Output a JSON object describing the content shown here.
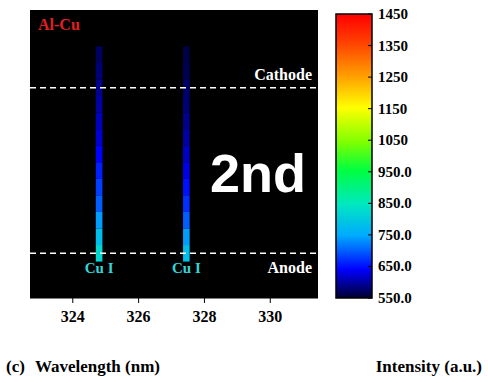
{
  "chart_data": {
    "type": "heatmap",
    "title": "Al-Cu",
    "panel_label": "(c)",
    "x_label": "Wavelength (nm)",
    "xlim": [
      322.7,
      331.45
    ],
    "xticks": [
      324,
      326,
      328,
      330
    ],
    "ylim": [
      -0.27,
      1.47
    ],
    "tick_labels": "x",
    "lines": [
      {
        "label": "Cu I",
        "wavelength": 324.8,
        "width": 0.2,
        "y": [
          0,
          0.1,
          0.2,
          0.3,
          0.4,
          0.5,
          0.6,
          0.7,
          0.8,
          0.9,
          1.0,
          1.1,
          1.2
        ],
        "values": [
          820,
          780,
          740,
          700,
          680,
          660,
          640,
          620,
          610,
          600,
          590,
          580,
          570
        ]
      },
      {
        "label": "Cu I",
        "wavelength": 327.45,
        "width": 0.2,
        "y": [
          0,
          0.1,
          0.2,
          0.3,
          0.4,
          0.5,
          0.6,
          0.7,
          0.8,
          0.9,
          1.0,
          1.1,
          1.2
        ],
        "values": [
          780,
          740,
          700,
          670,
          650,
          630,
          615,
          600,
          590,
          580,
          575,
          565,
          560
        ]
      }
    ],
    "annotations": [
      {
        "text": "Cathode",
        "y": 1
      },
      {
        "text": "Anode",
        "y": 0
      },
      {
        "text": "2nd"
      }
    ],
    "colorbar": {
      "label": "Intensity (a.u.)",
      "range": [
        550,
        1450
      ],
      "ticks": [
        1450,
        1350,
        1250,
        1150,
        1050,
        {
          "value": 950,
          "label": "950.0"
        },
        {
          "value": 850,
          "label": "850.0"
        },
        {
          "value": 750,
          "label": "750.0"
        },
        {
          "value": 650,
          "label": "650.0"
        },
        {
          "value": 550,
          "label": "550.0"
        }
      ]
    }
  }
}
